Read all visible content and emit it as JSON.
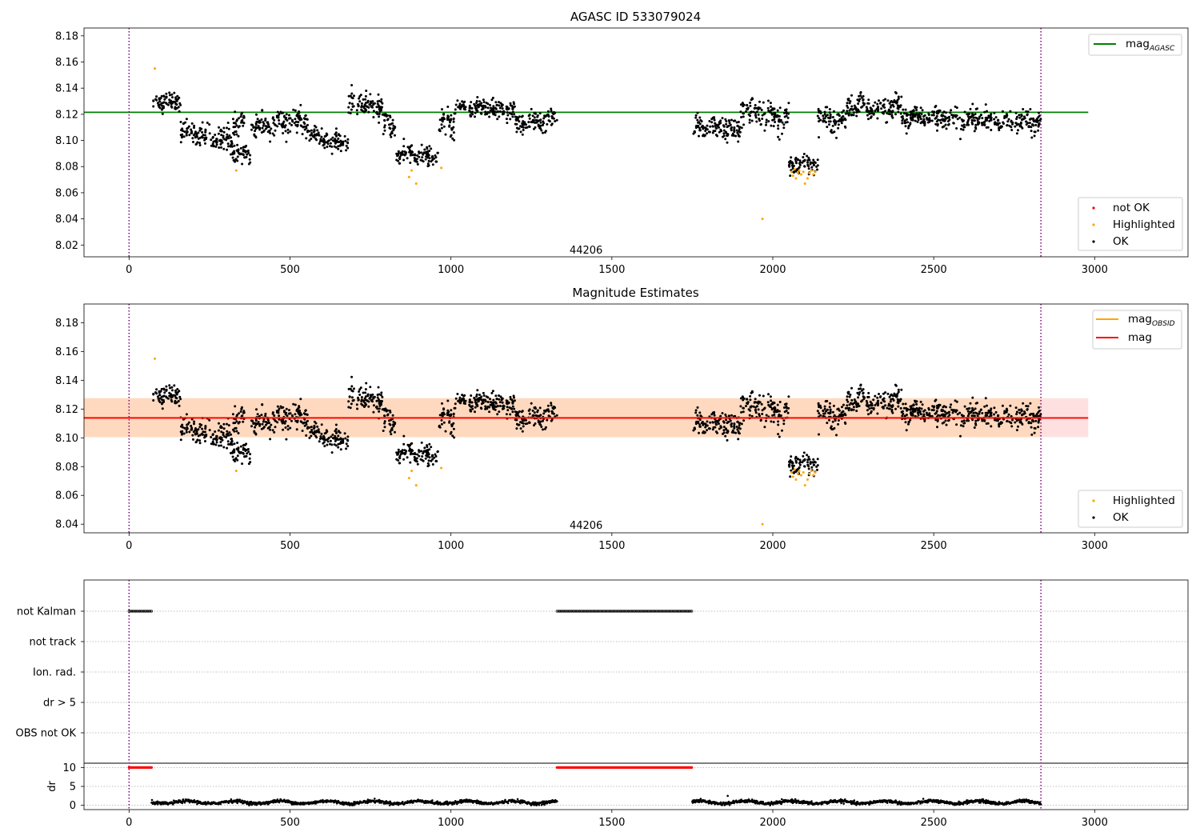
{
  "chart_data": [
    {
      "type": "scatter",
      "title": "AGASC ID 533079024",
      "xlim": [
        -140,
        3290
      ],
      "ylim": [
        8.011,
        8.186
      ],
      "xticks": [
        0,
        500,
        1000,
        1500,
        2000,
        2500,
        3000
      ],
      "yticks": [
        8.02,
        8.04,
        8.06,
        8.08,
        8.1,
        8.12,
        8.14,
        8.16,
        8.18
      ],
      "annotation": {
        "text": "44206",
        "x": 1420,
        "y": 8.016
      },
      "vlines": [
        0,
        2833
      ],
      "hline": {
        "name": "mag",
        "subscript": "AGASC",
        "value": 8.1215,
        "xmin": -140,
        "xmax": 2980,
        "color": "#008000"
      },
      "segments": [
        {
          "x0": 75,
          "x1": 160,
          "y0": 8.13,
          "y1": 8.13,
          "sd": 0.004
        },
        {
          "x0": 160,
          "x1": 320,
          "y0": 8.107,
          "y1": 8.1,
          "sd": 0.005
        },
        {
          "x0": 320,
          "x1": 360,
          "y0": 8.112,
          "y1": 8.115,
          "sd": 0.005
        },
        {
          "x0": 320,
          "x1": 380,
          "y0": 8.09,
          "y1": 8.088,
          "sd": 0.004
        },
        {
          "x0": 380,
          "x1": 560,
          "y0": 8.11,
          "y1": 8.115,
          "sd": 0.005
        },
        {
          "x0": 560,
          "x1": 680,
          "y0": 8.103,
          "y1": 8.098,
          "sd": 0.005
        },
        {
          "x0": 680,
          "x1": 790,
          "y0": 8.127,
          "y1": 8.127,
          "sd": 0.005
        },
        {
          "x0": 790,
          "x1": 830,
          "y0": 8.113,
          "y1": 8.108,
          "sd": 0.005
        },
        {
          "x0": 830,
          "x1": 960,
          "y0": 8.09,
          "y1": 8.087,
          "sd": 0.004
        },
        {
          "x0": 960,
          "x1": 1010,
          "y0": 8.113,
          "y1": 8.113,
          "sd": 0.006
        },
        {
          "x0": 1010,
          "x1": 1200,
          "y0": 8.125,
          "y1": 8.124,
          "sd": 0.004
        },
        {
          "x0": 1200,
          "x1": 1330,
          "y0": 8.112,
          "y1": 8.115,
          "sd": 0.005
        },
        {
          "x0": 1750,
          "x1": 1900,
          "y0": 8.11,
          "y1": 8.108,
          "sd": 0.005
        },
        {
          "x0": 1900,
          "x1": 2050,
          "y0": 8.124,
          "y1": 8.115,
          "sd": 0.006
        },
        {
          "x0": 2050,
          "x1": 2140,
          "y0": 8.081,
          "y1": 8.082,
          "sd": 0.004
        },
        {
          "x0": 2140,
          "x1": 2230,
          "y0": 8.118,
          "y1": 8.115,
          "sd": 0.005
        },
        {
          "x0": 2230,
          "x1": 2400,
          "y0": 8.127,
          "y1": 8.124,
          "sd": 0.005
        },
        {
          "x0": 2400,
          "x1": 2833,
          "y0": 8.118,
          "y1": 8.113,
          "sd": 0.005
        }
      ],
      "highlighted": [
        {
          "x": 80,
          "y": 8.155
        },
        {
          "x": 333,
          "y": 8.077
        },
        {
          "x": 870,
          "y": 8.072
        },
        {
          "x": 878,
          "y": 8.077
        },
        {
          "x": 892,
          "y": 8.067
        },
        {
          "x": 970,
          "y": 8.079
        },
        {
          "x": 1968,
          "y": 8.04
        },
        {
          "x": 2058,
          "y": 8.076
        },
        {
          "x": 2063,
          "y": 8.073
        },
        {
          "x": 2068,
          "y": 8.078
        },
        {
          "x": 2072,
          "y": 8.071
        },
        {
          "x": 2078,
          "y": 8.075
        },
        {
          "x": 2082,
          "y": 8.077
        },
        {
          "x": 2088,
          "y": 8.074
        },
        {
          "x": 2095,
          "y": 8.076
        },
        {
          "x": 2100,
          "y": 8.067
        },
        {
          "x": 2108,
          "y": 8.071
        },
        {
          "x": 2114,
          "y": 8.075
        },
        {
          "x": 2120,
          "y": 8.077
        },
        {
          "x": 2126,
          "y": 8.074
        },
        {
          "x": 2132,
          "y": 8.076
        }
      ],
      "legend": [
        {
          "label": "not OK",
          "color": "#ff0000"
        },
        {
          "label": "Highlighted",
          "color": "#ffa500"
        },
        {
          "label": "OK",
          "color": "#000000"
        }
      ]
    },
    {
      "type": "scatter",
      "title": "Magnitude Estimates",
      "xlim": [
        -140,
        3290
      ],
      "ylim": [
        8.034,
        8.193
      ],
      "xticks": [
        0,
        500,
        1000,
        1500,
        2000,
        2500,
        3000
      ],
      "yticks": [
        8.04,
        8.06,
        8.08,
        8.1,
        8.12,
        8.14,
        8.16,
        8.18
      ],
      "annotation": {
        "text": "44206",
        "x": 1420,
        "y": 8.039
      },
      "vlines": [
        0,
        2833
      ],
      "bands": [
        {
          "ymin": 8.1005,
          "ymax": 8.1275,
          "xmin": -140,
          "xmax": 2980,
          "color": "#ffe0e0"
        },
        {
          "ymin": 8.1005,
          "ymax": 8.1275,
          "xmin": -140,
          "xmax": 2833,
          "color": "#ffd9bf"
        }
      ],
      "lines": [
        {
          "name": "mag",
          "subscript": "OBSID",
          "value": 8.114,
          "xmin": -140,
          "xmax": 2833,
          "color": "#ffa500"
        },
        {
          "name": "mag",
          "subscript": "",
          "value": 8.1138,
          "xmin": -140,
          "xmax": 2980,
          "color": "#ff0000"
        }
      ],
      "legend": [
        {
          "label": "Highlighted",
          "color": "#ffa500"
        },
        {
          "label": "OK",
          "color": "#000000"
        }
      ]
    },
    {
      "type": "scatter",
      "flag_rows": [
        "not Kalman",
        "not track",
        "Ion. rad.",
        "dr > 5",
        "OBS not OK"
      ],
      "not_kalman_ranges": [
        [
          0,
          70
        ],
        [
          1330,
          1750
        ]
      ],
      "dr_ylabel": "dr",
      "dr_yticks": [
        0,
        5,
        10
      ],
      "dr_ylim": [
        -0.5,
        10.5
      ],
      "xticks": [
        0,
        500,
        1000,
        1500,
        2000,
        2500,
        3000
      ],
      "xlim": [
        -140,
        3290
      ],
      "vlines": [
        0,
        2833
      ],
      "dr_segments": [
        {
          "x0": 70,
          "x1": 1330,
          "base": 0.8,
          "sd": 0.35
        },
        {
          "x0": 1750,
          "x1": 2833,
          "base": 0.8,
          "sd": 0.35
        }
      ],
      "dr_outlier": {
        "x": 1860,
        "y": 2.5
      }
    }
  ]
}
